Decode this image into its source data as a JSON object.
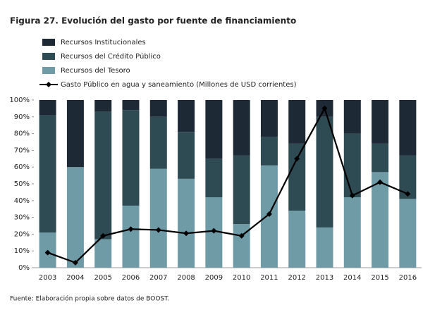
{
  "chart_data": {
    "type": "stacked_bar_line",
    "title": "Figura 27. Evolución del gasto por fuente de financiamiento",
    "source": "Fuente: Elaboración propia sobre datos de BOOST.",
    "categories": [
      "2003",
      "2004",
      "2005",
      "2006",
      "2007",
      "2008",
      "2009",
      "2010",
      "2011",
      "2012",
      "2013",
      "2014",
      "2015",
      "2016"
    ],
    "series": [
      {
        "name": "Recursos del Tesoro",
        "color": "#6f9ba7",
        "values": [
          21,
          60,
          17,
          37,
          59,
          53,
          42,
          26,
          61,
          34,
          24,
          42,
          57,
          41
        ]
      },
      {
        "name": "Recursos del Crédito Público",
        "color": "#2e4a52",
        "values": [
          70,
          0,
          76,
          57,
          31,
          28,
          23,
          41,
          17,
          40,
          66,
          38,
          17,
          26
        ]
      },
      {
        "name": "Recursos Institucionales",
        "color": "#1e2936",
        "values": [
          9,
          40,
          7,
          6,
          10,
          19,
          35,
          33,
          22,
          26,
          10,
          20,
          26,
          33
        ]
      }
    ],
    "line": {
      "name": "Gasto Público en agua y saneamiento (Millones de USD corrientes)",
      "color": "#000000",
      "values": [
        9,
        3,
        19,
        23,
        22.5,
        20.5,
        22,
        19,
        32,
        65,
        95,
        43,
        51,
        44
      ]
    },
    "ylim": [
      0,
      100
    ],
    "yticks": [
      {
        "value": 0,
        "label": "0%"
      },
      {
        "value": 10,
        "label": "10%"
      },
      {
        "value": 20,
        "label": "20%"
      },
      {
        "value": 30,
        "label": "30%"
      },
      {
        "value": 40,
        "label": "40%"
      },
      {
        "value": 50,
        "label": "50%"
      },
      {
        "value": 60,
        "label": "60%"
      },
      {
        "value": 70,
        "label": "70%"
      },
      {
        "value": 80,
        "label": "80%"
      },
      {
        "value": 90,
        "label": "90%"
      },
      {
        "value": 100,
        "label": "100%"
      }
    ]
  }
}
